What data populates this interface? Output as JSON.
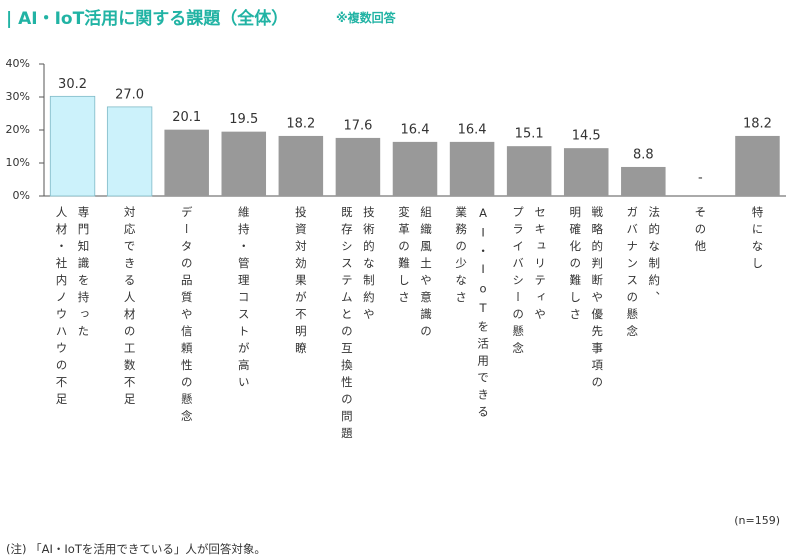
{
  "chart_data": {
    "type": "bar",
    "title": "| AI・IoT活用に関する課題（全体）",
    "subtitle": "※複数回答",
    "categories": [
      "専門知識を持った\n人材・社内ノウハウの不足",
      "対応できる人材の工数不足",
      "データの品質や信頼性の懸念",
      "維持・管理コストが高い",
      "投資対効果が不明瞭",
      "技術的な制約や\n既存システムとの互換性の問題",
      "組織風土や意識の\n変革の難しさ",
      "AI・IoTを活用できる\n業務の少なさ",
      "セキュリティや\nプライバシーの懸念",
      "戦略的判断や優先事項の\n明確化の難しさ",
      "法的な制約、\nガバナンスの懸念",
      "その他",
      "特になし"
    ],
    "values": [
      30.2,
      27.0,
      20.1,
      19.5,
      18.2,
      17.6,
      16.4,
      16.4,
      15.1,
      14.5,
      8.8,
      null,
      18.2
    ],
    "value_labels": [
      "30.2",
      "27.0",
      "20.1",
      "19.5",
      "18.2",
      "17.6",
      "16.4",
      "16.4",
      "15.1",
      "14.5",
      "8.8",
      "-",
      "18.2"
    ],
    "colors": [
      "#ccf2fb",
      "#ccf2fb",
      "#999999",
      "#999999",
      "#999999",
      "#999999",
      "#999999",
      "#999999",
      "#999999",
      "#999999",
      "#999999",
      "#999999",
      "#999999"
    ],
    "ylim": [
      0,
      40
    ],
    "yticks": [
      {
        "value": 0,
        "label": "0%"
      },
      {
        "value": 10,
        "label": "10%"
      },
      {
        "value": 20,
        "label": "20%"
      },
      {
        "value": 30,
        "label": "30%"
      },
      {
        "value": 40,
        "label": "40%"
      }
    ],
    "sample_note": "(n=159)",
    "footnote": "(注) 「AI・IoTを活用できている」人が回答対象。"
  }
}
